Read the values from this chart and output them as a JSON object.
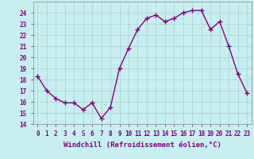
{
  "x": [
    0,
    1,
    2,
    3,
    4,
    5,
    6,
    7,
    8,
    9,
    10,
    11,
    12,
    13,
    14,
    15,
    16,
    17,
    18,
    19,
    20,
    21,
    22,
    23
  ],
  "y": [
    18.3,
    17.0,
    16.3,
    15.9,
    15.9,
    15.3,
    15.9,
    14.5,
    15.5,
    19.0,
    20.8,
    22.5,
    23.5,
    23.8,
    23.2,
    23.5,
    24.0,
    24.2,
    24.2,
    22.5,
    23.2,
    21.0,
    18.5,
    16.8
  ],
  "line_color": "#800080",
  "marker": "+",
  "marker_size": 4,
  "line_width": 1.0,
  "bg_color": "#c8eef0",
  "grid_color": "#b0d8dc",
  "xlabel": "Windchill (Refroidissement éolien,°C)",
  "xlabel_fontsize": 6.5,
  "ylim": [
    14,
    25
  ],
  "yticks": [
    14,
    15,
    16,
    17,
    18,
    19,
    20,
    21,
    22,
    23,
    24
  ],
  "xtick_labels": [
    "0",
    "1",
    "2",
    "3",
    "4",
    "5",
    "6",
    "7",
    "8",
    "9",
    "1011121314151617181920212223"
  ],
  "tick_color": "#800080",
  "tick_fontsize": 5.5,
  "label_fontsize": 6.5
}
